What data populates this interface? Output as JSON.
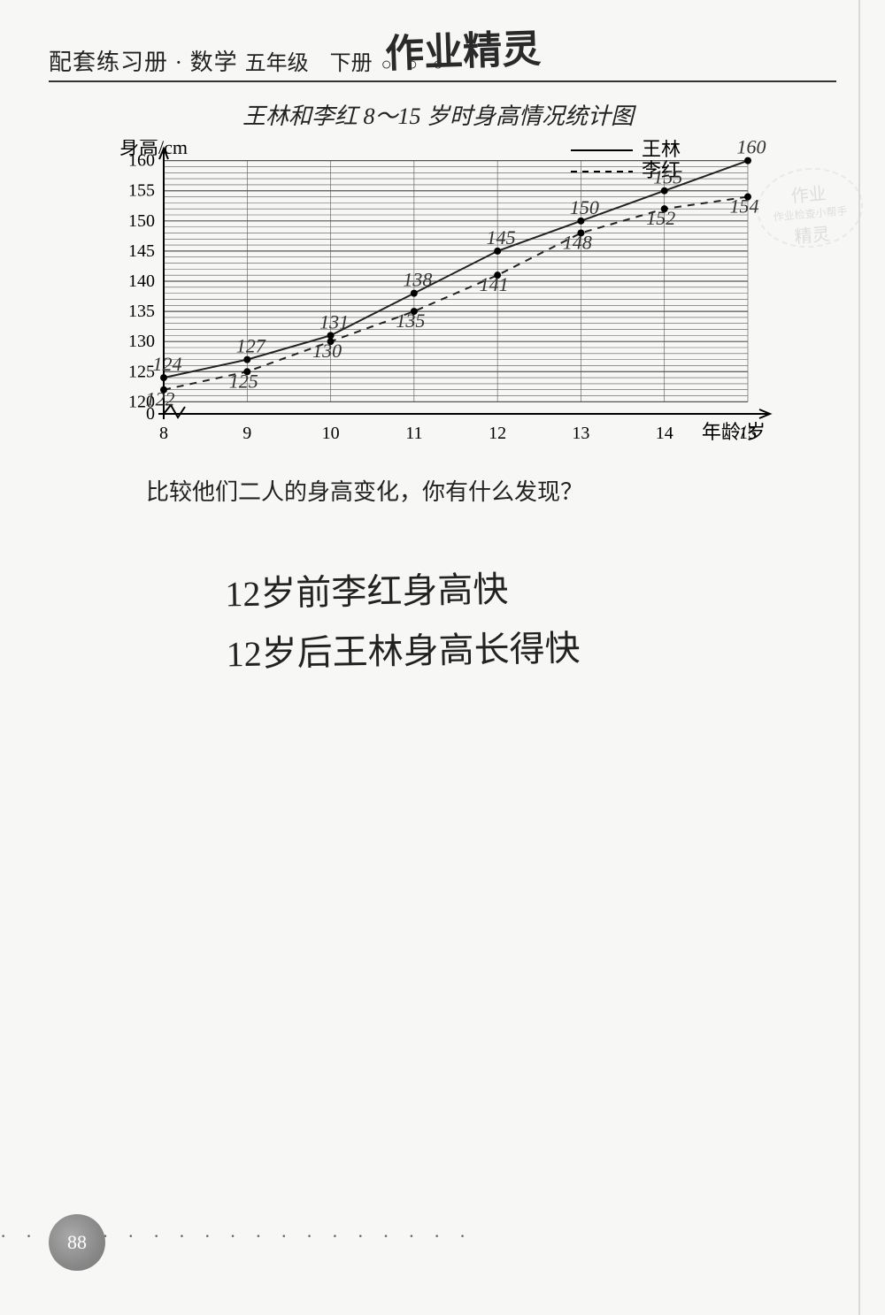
{
  "header": {
    "title": "配套练习册 · 数学",
    "grade": "五年级　下册",
    "circles": "○ ○ ○",
    "handwriting": "作业精灵"
  },
  "chart": {
    "type": "line",
    "title": "王林和李红 8～15 岁时身高情况统计图",
    "y_axis_label": "身高/cm",
    "x_axis_label": "年龄/岁",
    "y_ticks": [
      0,
      120,
      125,
      130,
      135,
      140,
      145,
      150,
      155,
      160
    ],
    "x_ticks": [
      8,
      9,
      10,
      11,
      12,
      13,
      14,
      15
    ],
    "ylim": [
      118,
      162
    ],
    "xlim": [
      8,
      15
    ],
    "series": [
      {
        "name": "王林",
        "legend": "王林",
        "style": "solid",
        "color": "#222222",
        "linewidth": 2,
        "points": [
          {
            "x": 8,
            "y": 124,
            "label": "124"
          },
          {
            "x": 9,
            "y": 127,
            "label": "127"
          },
          {
            "x": 10,
            "y": 131,
            "label": "131"
          },
          {
            "x": 11,
            "y": 138,
            "label": "138"
          },
          {
            "x": 12,
            "y": 145,
            "label": "145"
          },
          {
            "x": 13,
            "y": 150,
            "label": "150"
          },
          {
            "x": 14,
            "y": 155,
            "label": "155"
          },
          {
            "x": 15,
            "y": 160,
            "label": "160"
          }
        ]
      },
      {
        "name": "李红",
        "legend": "李红",
        "style": "dashed",
        "color": "#222222",
        "linewidth": 2,
        "points": [
          {
            "x": 8,
            "y": 122,
            "label": "122"
          },
          {
            "x": 9,
            "y": 125,
            "label": "125"
          },
          {
            "x": 10,
            "y": 130,
            "label": "130"
          },
          {
            "x": 11,
            "y": 135,
            "label": "135"
          },
          {
            "x": 12,
            "y": 141,
            "label": "141"
          },
          {
            "x": 13,
            "y": 148,
            "label": "148"
          },
          {
            "x": 14,
            "y": 152,
            "label": "152"
          },
          {
            "x": 15,
            "y": 154,
            "label": "154"
          }
        ]
      }
    ],
    "grid_color": "#555555",
    "background_color": "#f7f7f5",
    "legend_pos": "top-right",
    "marker": "circle",
    "marker_size": 4,
    "axis_break": true
  },
  "question": "比较他们二人的身高变化，你有什么发现？",
  "answers": [
    "12岁前李红身高快",
    "12岁后王林身高长得快"
  ],
  "watermark": {
    "line1": "作业",
    "line2": "作业检查小帮手",
    "line3": "精灵"
  },
  "page_number": "88",
  "dots": "· · · · · · · · · · · · · · · · · · ·"
}
